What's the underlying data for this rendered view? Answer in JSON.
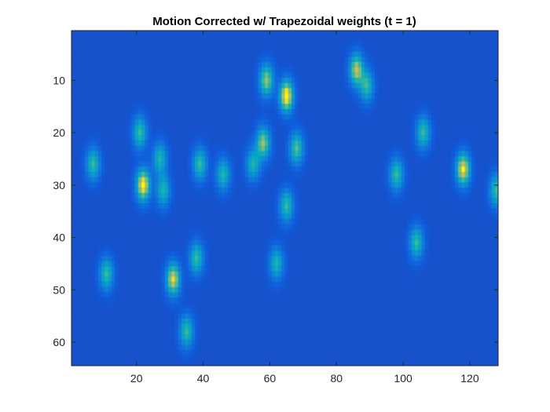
{
  "chart_data": {
    "type": "heatmap",
    "title": "Motion Corrected w/ Trapezoidal weights (t = 1)",
    "xlabel": "",
    "ylabel": "",
    "xlim": [
      0.5,
      128.5
    ],
    "ylim": [
      0.5,
      64.5
    ],
    "y_direction": "reverse",
    "grid": false,
    "colormap": "parula",
    "background_value": 0.12,
    "xticks": [
      20,
      40,
      60,
      80,
      100,
      120
    ],
    "yticks": [
      10,
      20,
      30,
      40,
      50,
      60
    ],
    "xtick_labels": [
      "20",
      "40",
      "60",
      "80",
      "100",
      "120"
    ],
    "ytick_labels": [
      "10",
      "20",
      "30",
      "40",
      "50",
      "60"
    ],
    "blobs": [
      {
        "x": 7,
        "y": 26,
        "intensity": 0.55
      },
      {
        "x": 11,
        "y": 47,
        "intensity": 0.55
      },
      {
        "x": 21,
        "y": 20,
        "intensity": 0.55
      },
      {
        "x": 22,
        "y": 30,
        "intensity": 0.95
      },
      {
        "x": 27,
        "y": 25,
        "intensity": 0.5
      },
      {
        "x": 28,
        "y": 31,
        "intensity": 0.5
      },
      {
        "x": 31,
        "y": 48,
        "intensity": 0.85
      },
      {
        "x": 35,
        "y": 58,
        "intensity": 0.55
      },
      {
        "x": 38,
        "y": 44,
        "intensity": 0.55
      },
      {
        "x": 39,
        "y": 26,
        "intensity": 0.55
      },
      {
        "x": 46,
        "y": 28,
        "intensity": 0.5
      },
      {
        "x": 55,
        "y": 26,
        "intensity": 0.5
      },
      {
        "x": 58,
        "y": 22,
        "intensity": 0.72
      },
      {
        "x": 59,
        "y": 10,
        "intensity": 0.72
      },
      {
        "x": 62,
        "y": 45,
        "intensity": 0.5
      },
      {
        "x": 65,
        "y": 13,
        "intensity": 0.97
      },
      {
        "x": 65,
        "y": 34,
        "intensity": 0.55
      },
      {
        "x": 68,
        "y": 23,
        "intensity": 0.6
      },
      {
        "x": 86,
        "y": 8,
        "intensity": 0.78
      },
      {
        "x": 89,
        "y": 11,
        "intensity": 0.55
      },
      {
        "x": 98,
        "y": 28,
        "intensity": 0.55
      },
      {
        "x": 104,
        "y": 41,
        "intensity": 0.55
      },
      {
        "x": 106,
        "y": 20,
        "intensity": 0.55
      },
      {
        "x": 118,
        "y": 27,
        "intensity": 0.9
      },
      {
        "x": 128,
        "y": 31,
        "intensity": 0.55
      }
    ]
  }
}
